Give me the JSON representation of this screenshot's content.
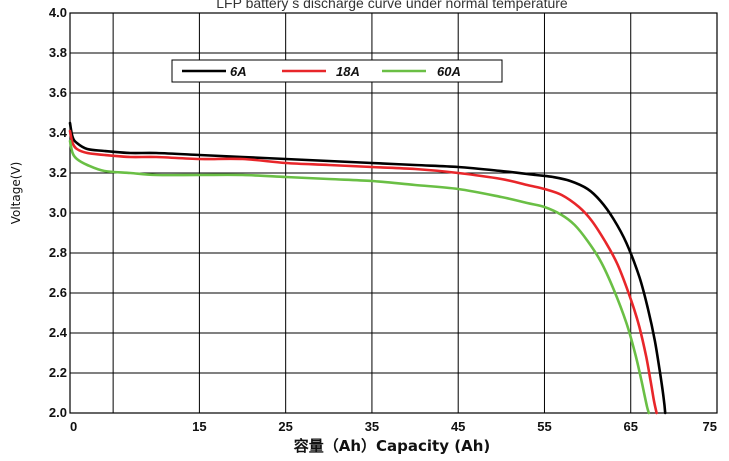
{
  "chart_data": {
    "type": "line",
    "title": "LFP battery   s discharge curve under normal temperature",
    "xlabel": "容量（Ah）Capacity (Ah)",
    "ylabel": "Voltage(V)",
    "xlim": [
      0,
      75
    ],
    "ylim": [
      2.0,
      4.0
    ],
    "x_ticks": [
      "0",
      "15",
      "25",
      "35",
      "45",
      "55",
      "65",
      "75"
    ],
    "x_tick_values": [
      0,
      15,
      25,
      35,
      45,
      55,
      65,
      75
    ],
    "y_ticks": [
      "2.0",
      "2.2",
      "2.4",
      "2.6",
      "2.8",
      "3.0",
      "3.2",
      "3.4",
      "3.6",
      "3.8",
      "4.0"
    ],
    "y_tick_values": [
      2.0,
      2.2,
      2.4,
      2.6,
      2.8,
      3.0,
      3.2,
      3.4,
      3.6,
      3.8,
      4.0
    ],
    "x_gridlines": [
      0,
      5,
      15,
      25,
      35,
      45,
      55,
      65,
      75
    ],
    "grid": true,
    "legend_position": "top-left",
    "series": [
      {
        "name": "6A",
        "color": "#000000",
        "x": [
          0,
          0.3,
          0.8,
          2,
          4,
          7,
          10,
          15,
          20,
          25,
          30,
          35,
          40,
          45,
          50,
          54,
          56,
          58,
          60,
          61.5,
          63,
          64.5,
          66,
          67,
          67.8,
          68.4,
          68.8,
          69.0
        ],
        "y": [
          3.45,
          3.38,
          3.35,
          3.32,
          3.31,
          3.3,
          3.3,
          3.29,
          3.28,
          3.27,
          3.26,
          3.25,
          3.24,
          3.23,
          3.21,
          3.19,
          3.18,
          3.16,
          3.12,
          3.06,
          2.97,
          2.85,
          2.68,
          2.52,
          2.36,
          2.2,
          2.08,
          2.0
        ]
      },
      {
        "name": "18A",
        "color": "#e8262a",
        "x": [
          0,
          0.3,
          0.8,
          2,
          4,
          7,
          10,
          15,
          20,
          25,
          30,
          35,
          40,
          45,
          50,
          53,
          55,
          57,
          59,
          60.5,
          62,
          63.5,
          65,
          66,
          66.8,
          67.3,
          67.7,
          68.0
        ],
        "y": [
          3.41,
          3.35,
          3.32,
          3.3,
          3.29,
          3.28,
          3.28,
          3.27,
          3.27,
          3.25,
          3.24,
          3.23,
          3.22,
          3.2,
          3.17,
          3.14,
          3.12,
          3.09,
          3.03,
          2.96,
          2.86,
          2.74,
          2.57,
          2.43,
          2.28,
          2.16,
          2.06,
          2.0
        ]
      },
      {
        "name": "60A",
        "color": "#6abf45",
        "x": [
          0,
          0.3,
          0.8,
          2,
          4,
          7,
          10,
          15,
          20,
          25,
          30,
          35,
          40,
          45,
          50,
          53,
          55,
          57,
          58.5,
          60,
          61.5,
          63,
          64.5,
          65.5,
          66.2,
          66.6,
          66.9,
          67.1
        ],
        "y": [
          3.36,
          3.3,
          3.27,
          3.24,
          3.21,
          3.2,
          3.19,
          3.19,
          3.19,
          3.18,
          3.17,
          3.16,
          3.14,
          3.12,
          3.08,
          3.05,
          3.03,
          2.99,
          2.94,
          2.86,
          2.76,
          2.62,
          2.45,
          2.3,
          2.17,
          2.09,
          2.03,
          2.0
        ]
      }
    ]
  }
}
